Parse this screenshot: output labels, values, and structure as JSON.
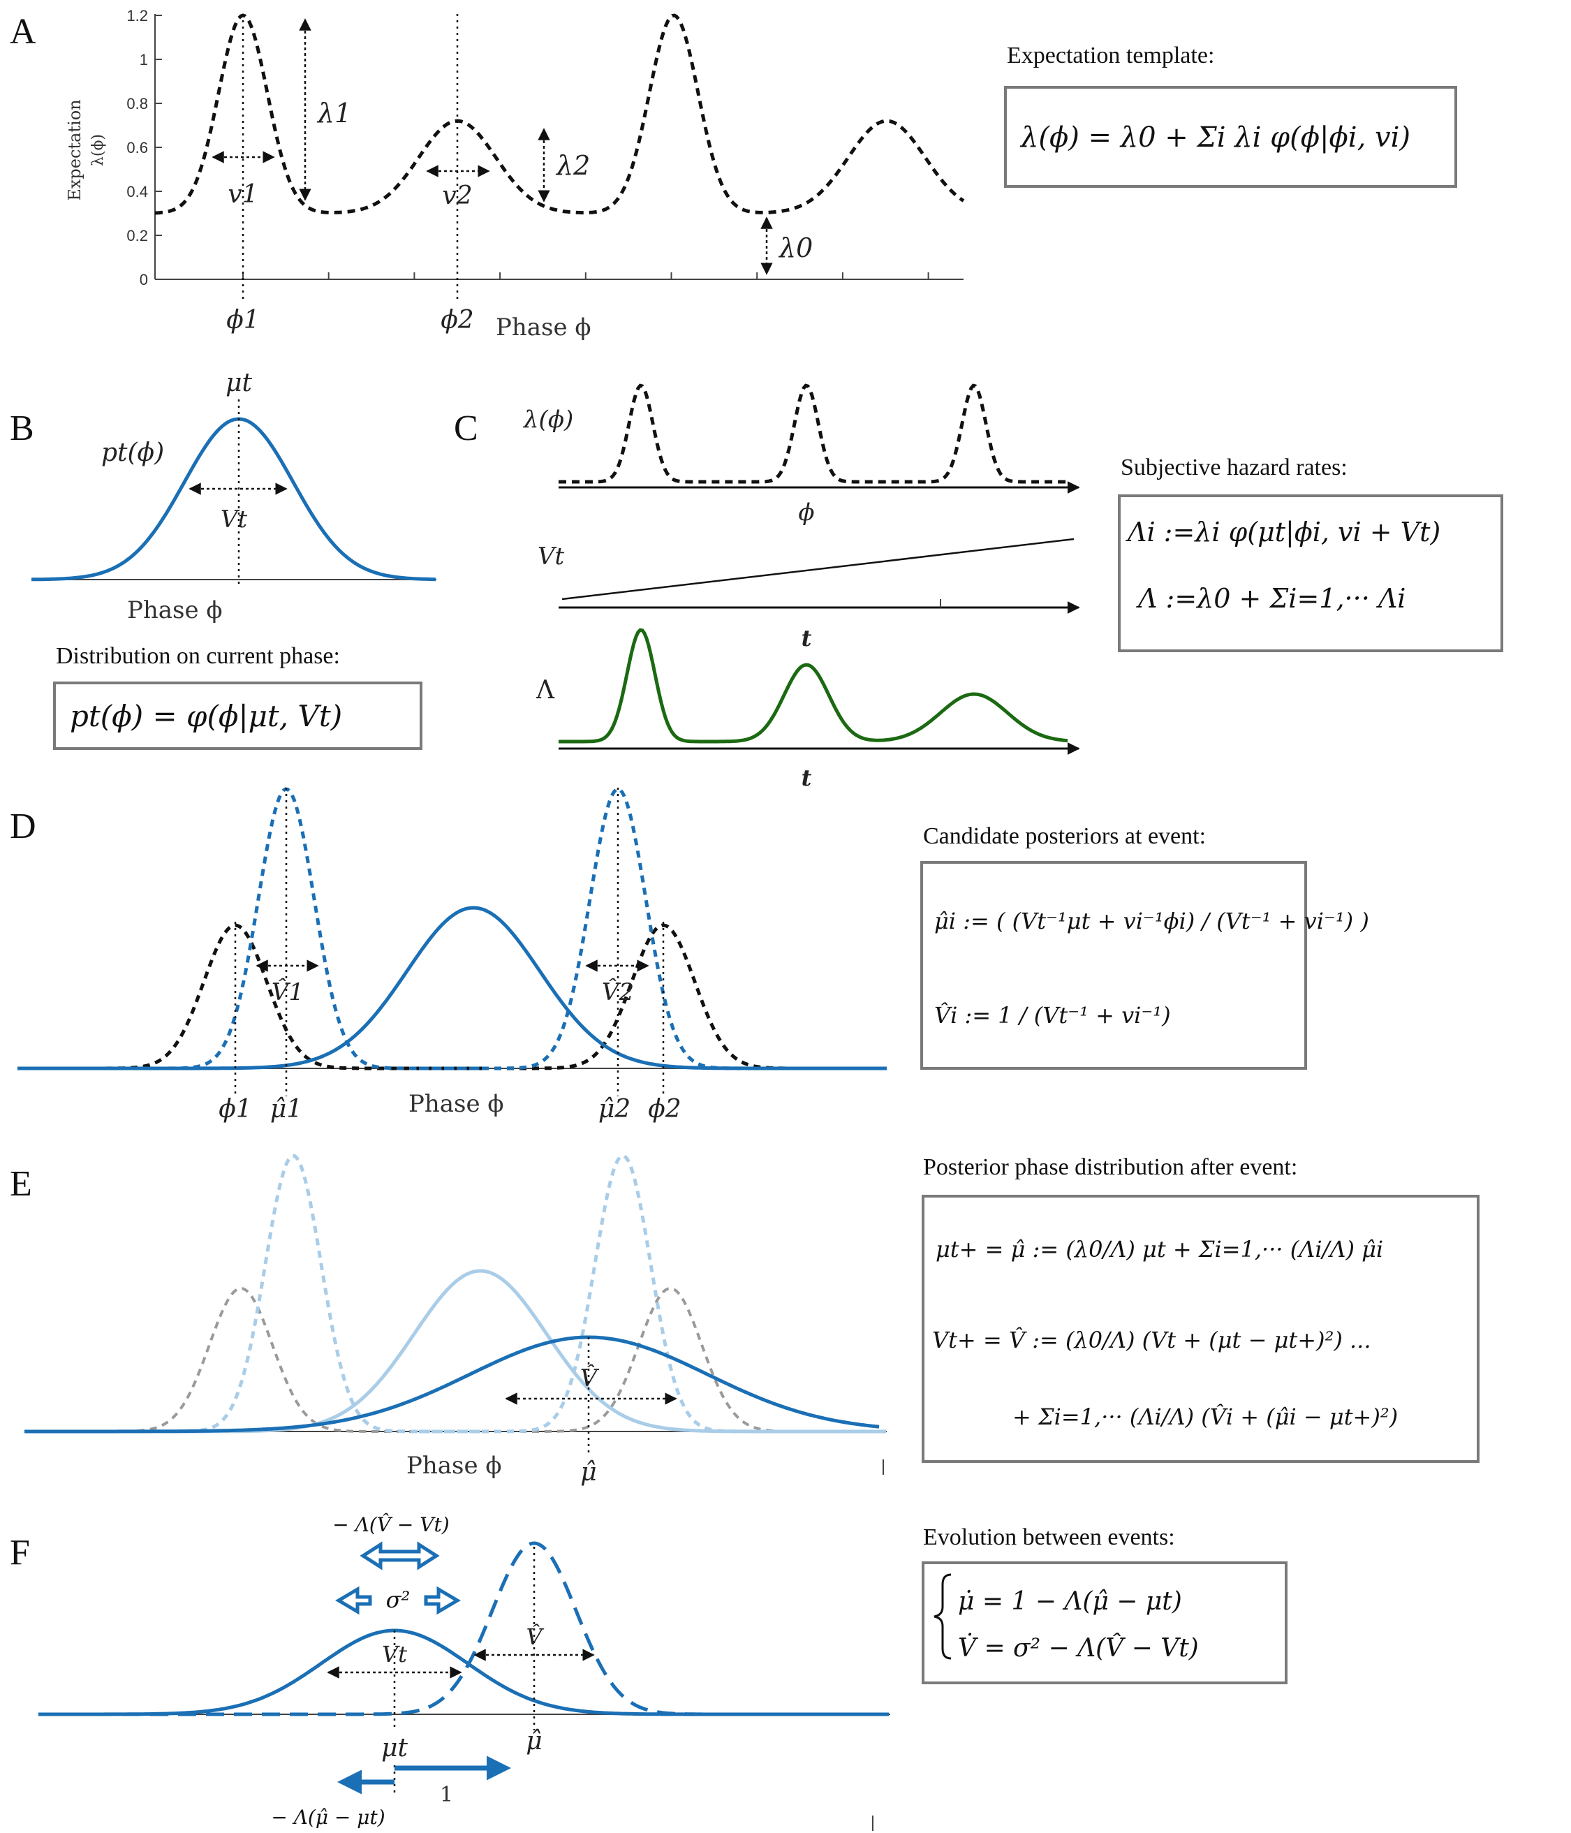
{
  "colors": {
    "blue": "#1a6fb5",
    "lightblue": "#a9cde8",
    "green": "#1b6a12",
    "black": "#111111",
    "gray": "#9a9a9a"
  },
  "panelA": {
    "letter": "A",
    "y_axis_label_line1": "Expectation",
    "y_axis_label_line2": "λ(ϕ)",
    "y_ticks": [
      "0",
      "0.2",
      "0.4",
      "0.6",
      "0.8",
      "1",
      "1.2"
    ],
    "x_label": "Phase ϕ",
    "phi1": "ϕ1",
    "phi2": "ϕ2",
    "lambda1": "λ1",
    "lambda2": "λ2",
    "lambda0": "λ0",
    "v1": "v1",
    "v2": "v2",
    "box_title": "Expectation template:",
    "eq": "λ(ϕ) = λ0 + Σi λi φ(ϕ|ϕi, vi)"
  },
  "panelB": {
    "letter": "B",
    "mu_label": "μt",
    "p_label": "pt(ϕ)",
    "v_label": "Vt",
    "x_label": "Phase ϕ",
    "box_title": "Distribution on current phase:",
    "eq": "pt(ϕ) = φ(ϕ|μt, Vt)"
  },
  "panelC": {
    "letter": "C",
    "lambda_label": "λ(ϕ)",
    "phi_axis": "ϕ",
    "vt_label": "Vt",
    "t_axis1": "t",
    "Lambda_label": "Λ",
    "t_axis2": "t",
    "box_title": "Subjective hazard rates:",
    "eq1": "Λi :=λi φ(μt|ϕi, vi + Vt)",
    "eq2": "Λ :=λ0 + Σi=1,··· Λi"
  },
  "panelD": {
    "letter": "D",
    "x_label": "Phase ϕ",
    "phi1": "ϕ1",
    "mu1": "μ̂1",
    "mu2": "μ̂2",
    "phi2": "ϕ2",
    "v1": "V̂1",
    "v2": "V̂2",
    "box_title": "Candidate posteriors at event:",
    "eq1": "μ̂i := ( (Vt⁻¹μt + vi⁻¹ϕi) / (Vt⁻¹ + vi⁻¹) )",
    "eq2": "V̂i := 1 / (Vt⁻¹ + vi⁻¹)"
  },
  "panelE": {
    "letter": "E",
    "x_label": "Phase ϕ",
    "mu_hat": "μ̂",
    "v_hat": "V̂",
    "box_title": "Posterior phase distribution after event:",
    "eq1": "μt+ = μ̂ := (λ0/Λ) μt + Σi=1,··· (Λi/Λ) μ̂i",
    "eq2": "Vt+ = V̂ := (λ0/Λ) (Vt + (μt − μt+)²) ...",
    "eq3": "+ Σi=1,··· (Λi/Λ) (V̂i + (μ̂i − μt+)²)"
  },
  "panelF": {
    "letter": "F",
    "top_arrow_label": "− Λ(V̂ − Vt)",
    "sigma_label": "σ²",
    "vt_label": "Vt",
    "vhat_label": "V̂",
    "mu_t": "μt",
    "mu_hat": "μ̂",
    "one_label": "1",
    "bottom_label": "− Λ(μ̂ − μt)",
    "box_title": "Evolution between events:",
    "eq1": "μ̇ =   1 − Λ(μ̂ − μt)",
    "eq2": "V̇ =   σ² − Λ(V̂ − Vt)"
  }
}
